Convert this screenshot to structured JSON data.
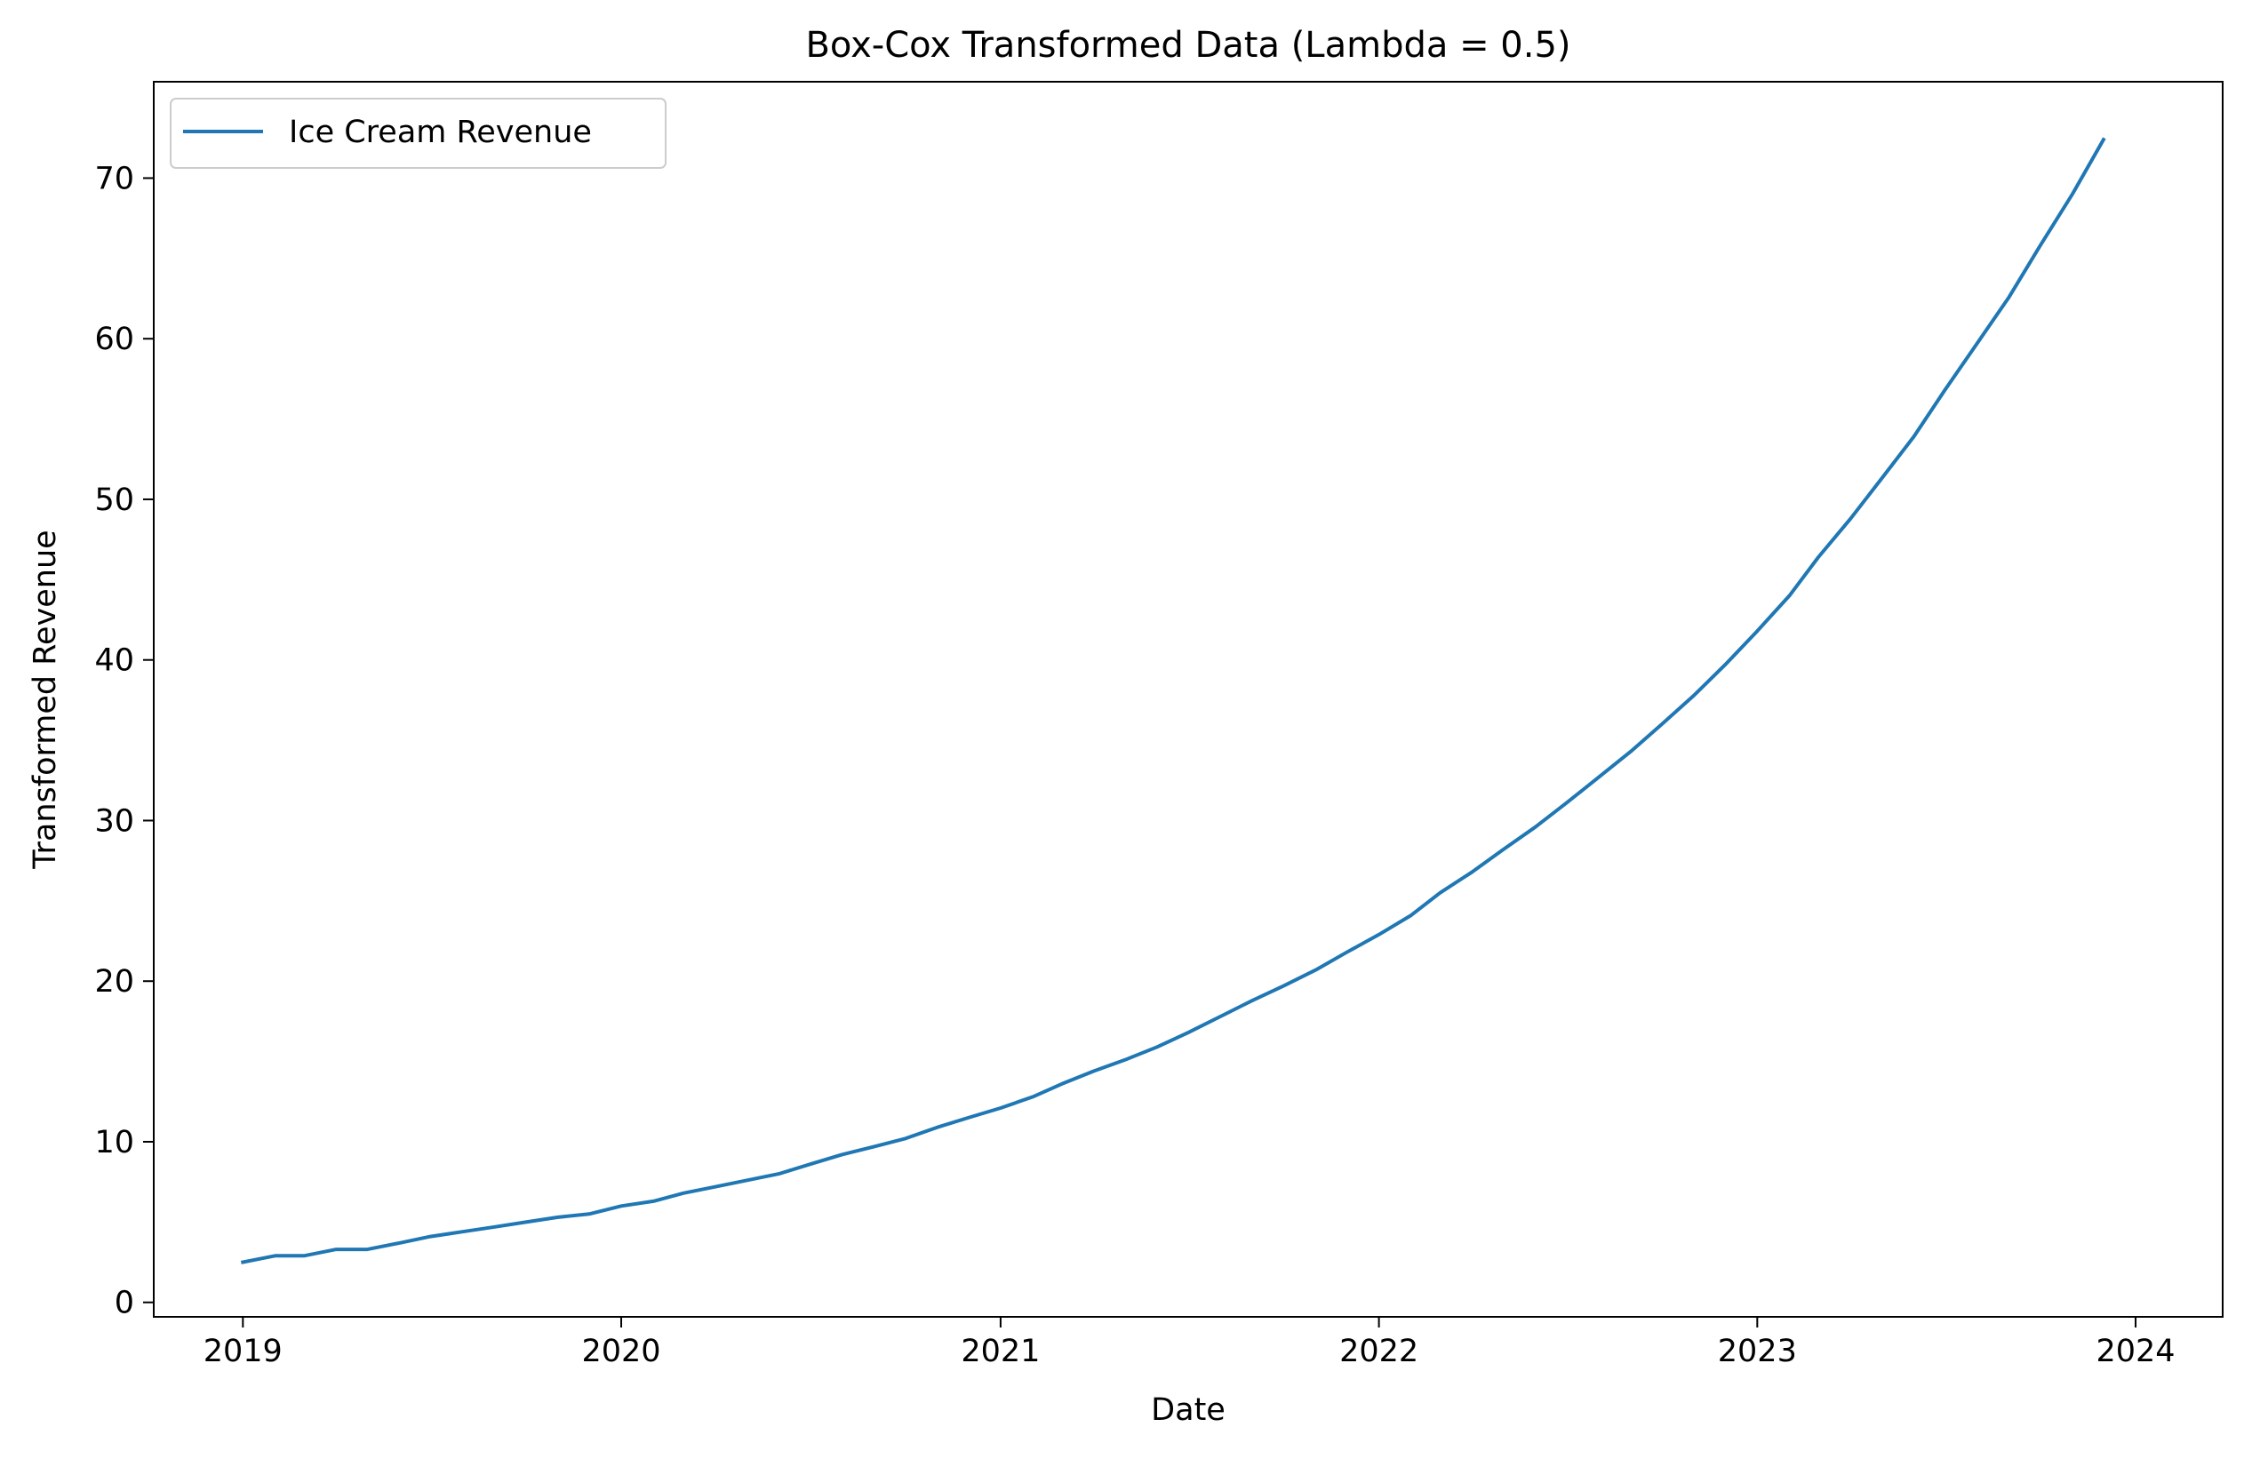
{
  "chart_data": {
    "type": "line",
    "title": "Box-Cox Transformed Data (Lambda = 0.5)",
    "xlabel": "Date",
    "ylabel": "Transformed Revenue",
    "xlim": [
      "2018-10-07",
      "2024-03-25"
    ],
    "ylim": [
      -0.9,
      76
    ],
    "x_ticks": [
      "2019-01-01",
      "2020-01-01",
      "2021-01-01",
      "2022-01-01",
      "2023-01-01",
      "2024-01-01"
    ],
    "x_tick_labels": [
      "2019",
      "2020",
      "2021",
      "2022",
      "2023",
      "2024"
    ],
    "y_ticks": [
      0,
      10,
      20,
      30,
      40,
      50,
      60,
      70
    ],
    "y_tick_labels": [
      "0",
      "10",
      "20",
      "30",
      "40",
      "50",
      "60",
      "70"
    ],
    "grid": false,
    "legend": {
      "position": "top-left",
      "entries": [
        "Ice Cream Revenue"
      ]
    },
    "colors": {
      "series": "#1f77b4",
      "frame": "#000000",
      "legend_border": "#cccccc"
    },
    "x": [
      "2019-01-01",
      "2019-02-01",
      "2019-03-01",
      "2019-04-01",
      "2019-05-01",
      "2019-06-01",
      "2019-07-01",
      "2019-08-01",
      "2019-09-01",
      "2019-10-01",
      "2019-11-01",
      "2019-12-01",
      "2020-01-01",
      "2020-02-01",
      "2020-03-01",
      "2020-04-01",
      "2020-05-01",
      "2020-06-01",
      "2020-07-01",
      "2020-08-01",
      "2020-09-01",
      "2020-10-01",
      "2020-11-01",
      "2020-12-01",
      "2021-01-01",
      "2021-02-01",
      "2021-03-01",
      "2021-04-01",
      "2021-05-01",
      "2021-06-01",
      "2021-07-01",
      "2021-08-01",
      "2021-09-01",
      "2021-10-01",
      "2021-11-01",
      "2021-12-01",
      "2022-01-01",
      "2022-02-01",
      "2022-03-01",
      "2022-04-01",
      "2022-05-01",
      "2022-06-01",
      "2022-07-01",
      "2022-08-01",
      "2022-09-01",
      "2022-10-01",
      "2022-11-01",
      "2022-12-01",
      "2023-01-01",
      "2023-02-01",
      "2023-03-01",
      "2023-04-01",
      "2023-05-01",
      "2023-06-01",
      "2023-07-01",
      "2023-08-01",
      "2023-09-01",
      "2023-10-01",
      "2023-11-01",
      "2023-12-01"
    ],
    "series": [
      {
        "name": "Ice Cream Revenue",
        "values": [
          2.5,
          2.9,
          2.9,
          3.3,
          3.3,
          3.7,
          4.1,
          4.4,
          4.7,
          5.0,
          5.3,
          5.5,
          6.0,
          6.3,
          6.8,
          7.2,
          7.6,
          8.0,
          8.6,
          9.2,
          9.7,
          10.2,
          10.9,
          11.5,
          12.1,
          12.8,
          13.6,
          14.4,
          15.1,
          15.9,
          16.8,
          17.8,
          18.8,
          19.7,
          20.7,
          21.8,
          22.9,
          24.1,
          25.5,
          26.8,
          28.2,
          29.6,
          31.1,
          32.7,
          34.3,
          36.0,
          37.8,
          39.7,
          41.8,
          44.0,
          46.4,
          48.8,
          51.3,
          53.9,
          56.8,
          59.7,
          62.6,
          65.8,
          69.0,
          72.4
        ]
      }
    ]
  }
}
